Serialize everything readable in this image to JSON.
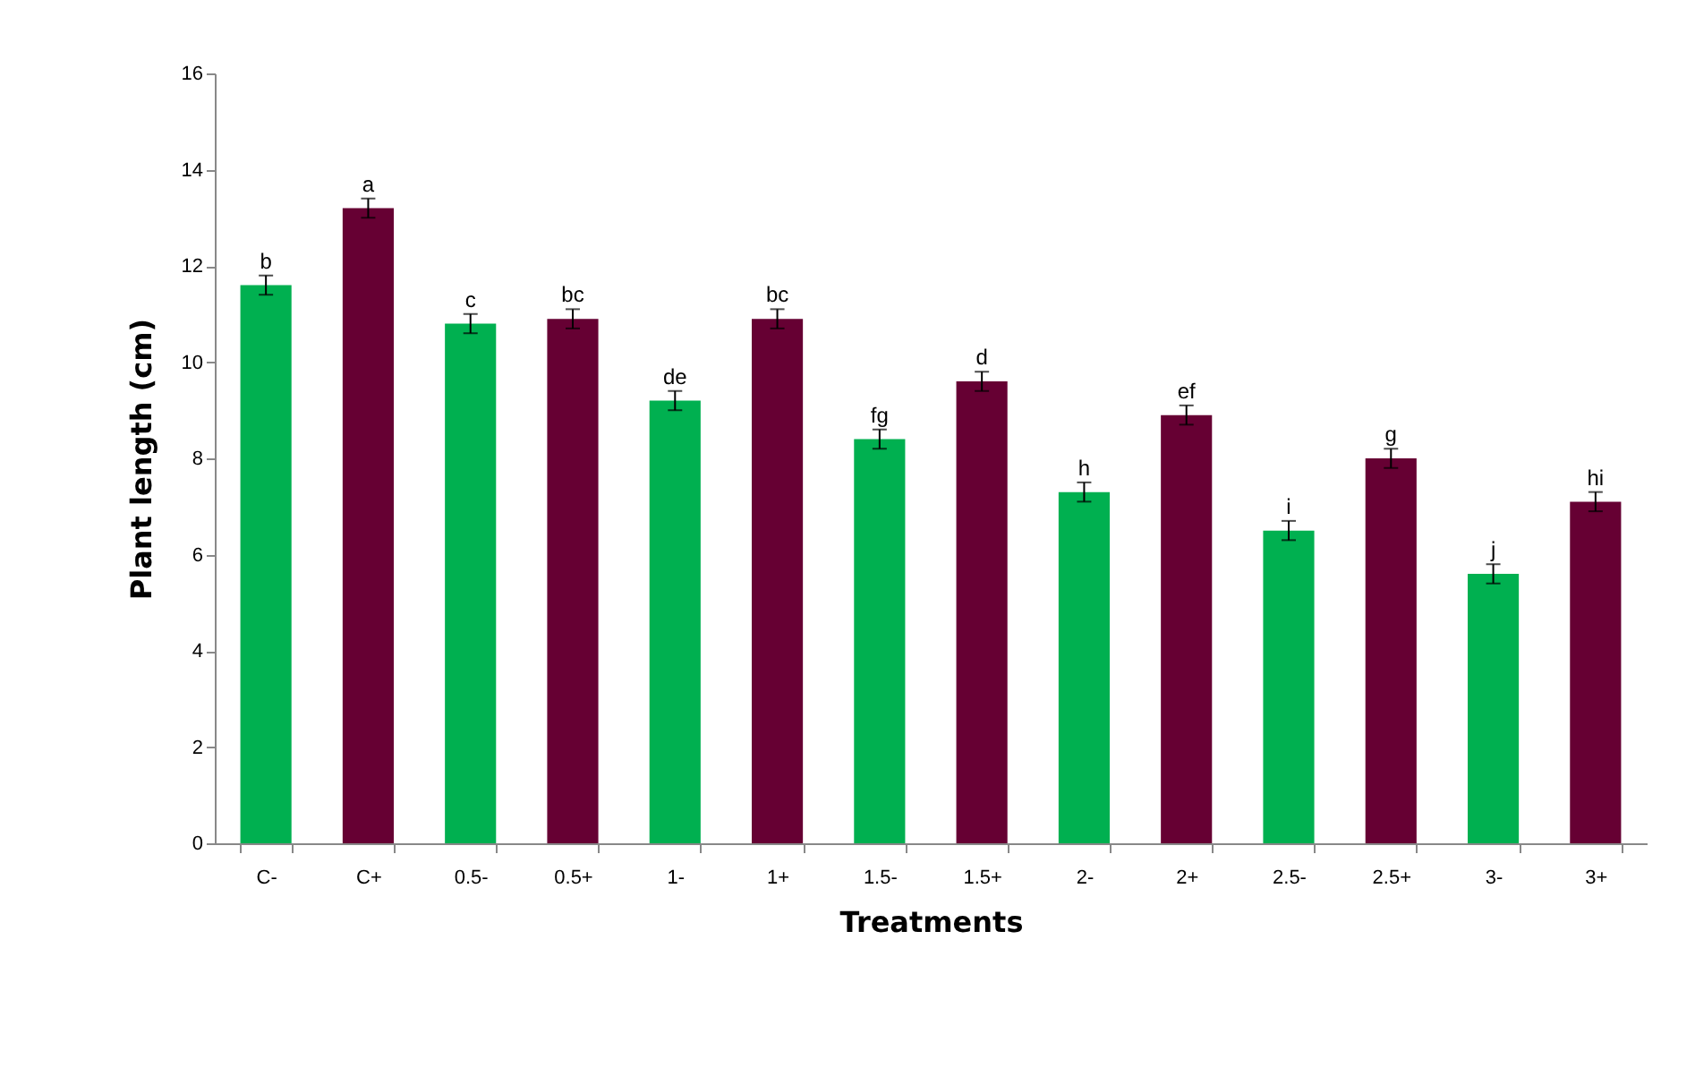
{
  "chart_data": {
    "type": "bar",
    "xlabel": "Treatments",
    "ylabel": "Plant length (cm)",
    "categories": [
      "C-",
      "C+",
      "0.5-",
      "0.5+",
      "1-",
      "1+",
      "1.5-",
      "1.5+",
      "2-",
      "2+",
      "2.5-",
      "2.5+",
      "3-",
      "3+"
    ],
    "values": [
      11.6,
      13.2,
      10.8,
      10.9,
      9.2,
      10.9,
      8.4,
      9.6,
      7.3,
      8.9,
      6.5,
      8.0,
      5.6,
      7.1
    ],
    "colors": [
      "#00b050",
      "#660033",
      "#00b050",
      "#660033",
      "#00b050",
      "#660033",
      "#00b050",
      "#660033",
      "#00b050",
      "#660033",
      "#00b050",
      "#660033",
      "#00b050",
      "#660033"
    ],
    "errors": [
      0.2,
      0.2,
      0.2,
      0.2,
      0.2,
      0.2,
      0.2,
      0.2,
      0.2,
      0.2,
      0.2,
      0.2,
      0.2,
      0.2
    ],
    "ylim": [
      0,
      16
    ],
    "yticks": [
      0,
      2,
      4,
      6,
      8,
      10,
      12,
      14,
      16
    ],
    "grid": false,
    "annotations": [
      {
        "text": "b",
        "x": "C-",
        "y": 11.8
      },
      {
        "text": "a",
        "x": "C+",
        "y": 13.4
      },
      {
        "text": "c",
        "x": "0.5-",
        "y": 11.0
      },
      {
        "text": "bc",
        "x": "0.5+",
        "y": 11.1
      },
      {
        "text": "de",
        "x": "1-",
        "y": 9.4
      },
      {
        "text": "bc",
        "x": "1+",
        "y": 11.1
      },
      {
        "text": "fg",
        "x": "1.5-",
        "y": 8.6
      },
      {
        "text": "d",
        "x": "1.5+",
        "y": 9.8
      },
      {
        "text": "h",
        "x": "2-",
        "y": 7.5
      },
      {
        "text": "ef",
        "x": "2+",
        "y": 9.1
      },
      {
        "text": "i",
        "x": "2.5-",
        "y": 6.7
      },
      {
        "text": "g",
        "x": "2.5+",
        "y": 8.2
      },
      {
        "text": "j",
        "x": "3-",
        "y": 5.8
      },
      {
        "text": "hi",
        "x": "3+",
        "y": 7.3
      }
    ]
  }
}
